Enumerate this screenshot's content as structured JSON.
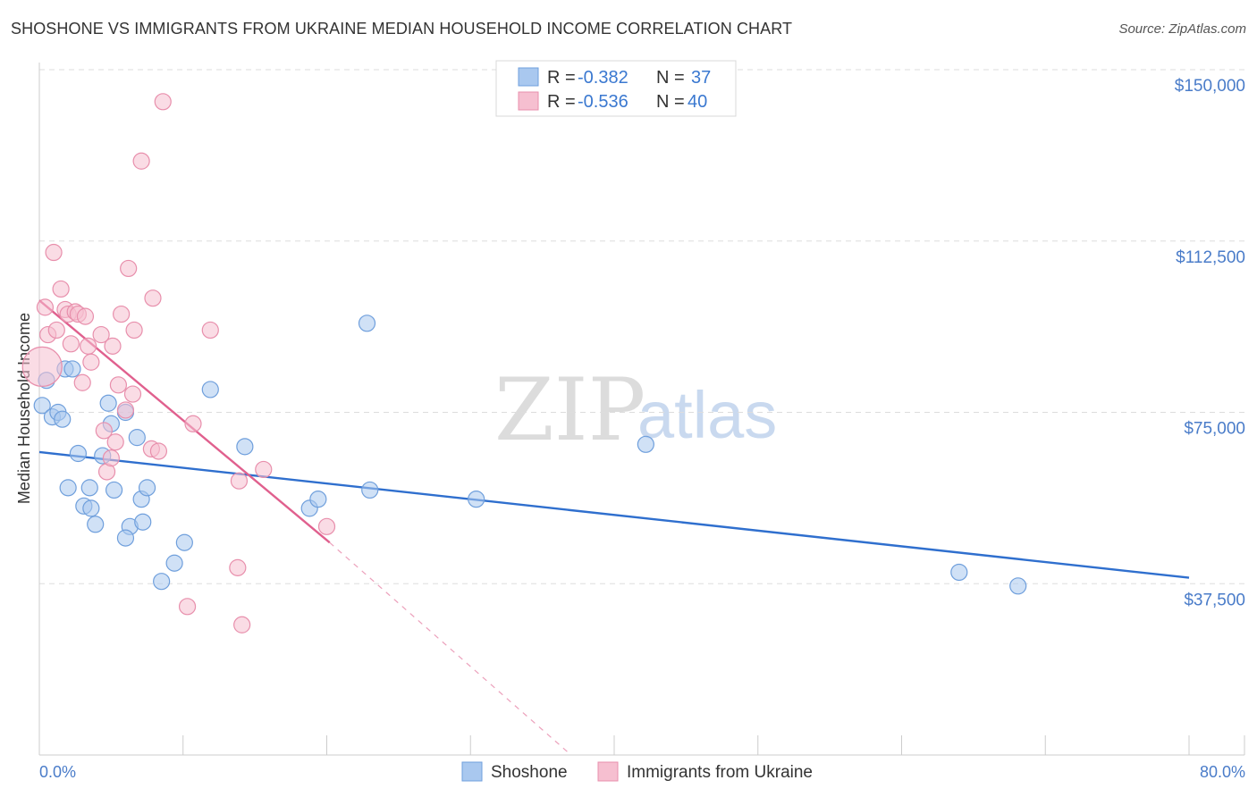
{
  "title": "SHOSHONE VS IMMIGRANTS FROM UKRAINE MEDIAN HOUSEHOLD INCOME CORRELATION CHART",
  "source": "Source: ZipAtlas.com",
  "watermark": {
    "zip": "ZIP",
    "atlas": "atlas"
  },
  "colors": {
    "blue_fill": "#a9c8ef",
    "blue_stroke": "#6f9fdc",
    "blue_line": "#2f6fce",
    "pink_fill": "#f6bfd0",
    "pink_stroke": "#e88fac",
    "pink_line": "#e0608e",
    "grid": "#dddddd",
    "tick_label": "#4a7cc9"
  },
  "legend": {
    "rows": [
      {
        "r_label": "R = ",
        "r_value": "-0.382",
        "n_label": "N = ",
        "n_value": "37"
      },
      {
        "r_label": "R = ",
        "r_value": "-0.536",
        "n_label": "N = ",
        "n_value": "40"
      }
    ]
  },
  "bottom_legend": [
    "Shoshone",
    "Immigrants from Ukraine"
  ],
  "chart_data": {
    "type": "scatter",
    "title": "SHOSHONE VS IMMIGRANTS FROM UKRAINE MEDIAN HOUSEHOLD INCOME CORRELATION CHART",
    "xlabel": "",
    "ylabel": "Median Household Income",
    "xlim": [
      0,
      80
    ],
    "ylim": [
      0,
      150000
    ],
    "x_tick_labels": [
      "0.0%",
      "80.0%"
    ],
    "y_ticks": [
      37500,
      75000,
      112500,
      150000
    ],
    "y_tick_labels": [
      "$37,500",
      "$75,000",
      "$112,500",
      "$150,000"
    ],
    "grid": true,
    "series": [
      {
        "name": "Shoshone",
        "color": "blue",
        "R": -0.382,
        "N": 37,
        "trend": {
          "x0": 0,
          "y0": 66300,
          "x1": 80,
          "y1": 38800
        },
        "points": [
          [
            0.2,
            76500
          ],
          [
            0.5,
            82000
          ],
          [
            0.9,
            74000
          ],
          [
            1.3,
            75000
          ],
          [
            1.6,
            73500
          ],
          [
            1.8,
            84500
          ],
          [
            2.3,
            84500
          ],
          [
            2.0,
            58500
          ],
          [
            2.7,
            66000
          ],
          [
            3.1,
            54500
          ],
          [
            3.5,
            58500
          ],
          [
            3.6,
            54000
          ],
          [
            3.9,
            50500
          ],
          [
            4.4,
            65500
          ],
          [
            4.8,
            77000
          ],
          [
            5.0,
            72500
          ],
          [
            5.2,
            58000
          ],
          [
            6.0,
            75000
          ],
          [
            6.3,
            50000
          ],
          [
            6.8,
            69500
          ],
          [
            7.1,
            56000
          ],
          [
            7.2,
            51000
          ],
          [
            7.5,
            58500
          ],
          [
            8.5,
            38000
          ],
          [
            9.4,
            42000
          ],
          [
            10.1,
            46500
          ],
          [
            6.0,
            47500
          ],
          [
            11.9,
            80000
          ],
          [
            14.3,
            67500
          ],
          [
            18.8,
            54000
          ],
          [
            19.4,
            56000
          ],
          [
            22.8,
            94500
          ],
          [
            23.0,
            58000
          ],
          [
            30.4,
            56000
          ],
          [
            42.2,
            68000
          ],
          [
            64.0,
            40000
          ],
          [
            68.1,
            37000
          ]
        ]
      },
      {
        "name": "Immigrants from Ukraine",
        "color": "pink",
        "R": -0.536,
        "N": 40,
        "trend": {
          "x0": 0,
          "y0": 99500,
          "x1": 20.2,
          "y1": 46500,
          "dash_x1": 37,
          "dash_y1": 0
        },
        "points": [
          [
            0.2,
            85000
          ],
          [
            0.4,
            98000
          ],
          [
            0.6,
            92000
          ],
          [
            1.0,
            110000
          ],
          [
            1.2,
            93000
          ],
          [
            1.5,
            102000
          ],
          [
            1.8,
            97500
          ],
          [
            2.0,
            96500
          ],
          [
            2.2,
            90000
          ],
          [
            2.5,
            97000
          ],
          [
            2.7,
            96500
          ],
          [
            3.0,
            81500
          ],
          [
            3.2,
            96000
          ],
          [
            3.4,
            89500
          ],
          [
            3.6,
            86000
          ],
          [
            4.3,
            92000
          ],
          [
            4.5,
            71000
          ],
          [
            4.7,
            62000
          ],
          [
            5.0,
            65000
          ],
          [
            5.1,
            89500
          ],
          [
            5.3,
            68500
          ],
          [
            5.5,
            81000
          ],
          [
            5.7,
            96500
          ],
          [
            6.0,
            75500
          ],
          [
            6.2,
            106500
          ],
          [
            6.5,
            79000
          ],
          [
            6.6,
            93000
          ],
          [
            7.1,
            130000
          ],
          [
            7.8,
            67000
          ],
          [
            7.9,
            100000
          ],
          [
            8.3,
            66500
          ],
          [
            8.6,
            143000
          ],
          [
            10.3,
            32500
          ],
          [
            10.7,
            72500
          ],
          [
            11.9,
            93000
          ],
          [
            13.8,
            41000
          ],
          [
            13.9,
            60000
          ],
          [
            14.1,
            28500
          ],
          [
            15.6,
            62500
          ],
          [
            20.0,
            50000
          ]
        ]
      }
    ]
  }
}
